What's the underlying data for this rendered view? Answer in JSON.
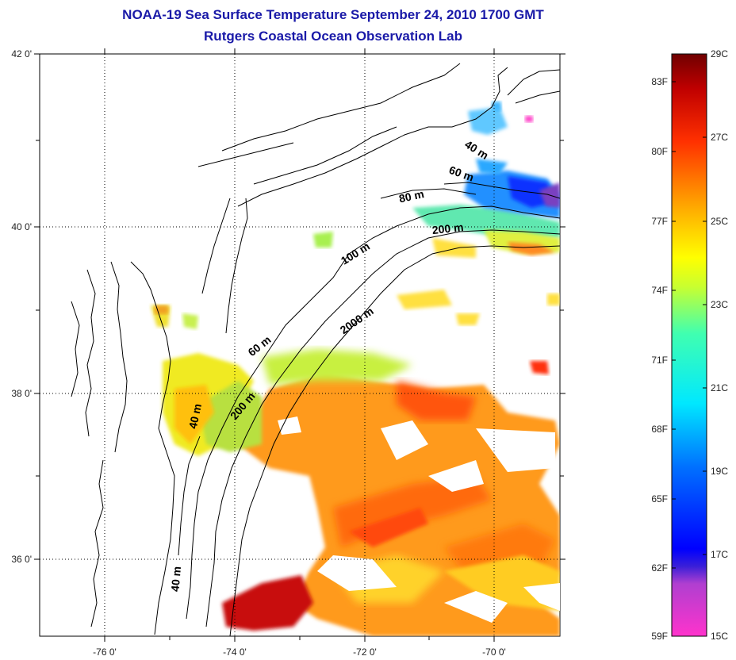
{
  "title": {
    "line1": "NOAA-19 Sea Surface Temperature September 24, 2010 1700 GMT",
    "line2": "Rutgers Coastal Ocean Observation Lab"
  },
  "map": {
    "lat_ticks": [
      "42 0'",
      "40 0'",
      "38 0'",
      "36 0'"
    ],
    "lon_ticks": [
      "-76 0'",
      "-74 0'",
      "-72 0'",
      "-70 0'"
    ],
    "contours": [
      "40 m",
      "60 m",
      "80 m",
      "200 m",
      "100 m",
      "2000 m",
      "60 m",
      "200 m",
      "40 m",
      "40 m"
    ]
  },
  "colorbar": {
    "fahrenheit": [
      "83F",
      "80F",
      "77F",
      "74F",
      "71F",
      "68F",
      "65F",
      "62F",
      "59F"
    ],
    "celsius": [
      "29C",
      "27C",
      "25C",
      "23C",
      "21C",
      "19C",
      "17C",
      "15C"
    ],
    "colors": [
      "#7a0000",
      "#d40000",
      "#ff4a00",
      "#ff9a00",
      "#ffe800",
      "#aaff2a",
      "#2affd0",
      "#00a8ff",
      "#1c28ff",
      "#0000e0",
      "#7a3fb0",
      "#ff33cc"
    ]
  }
}
